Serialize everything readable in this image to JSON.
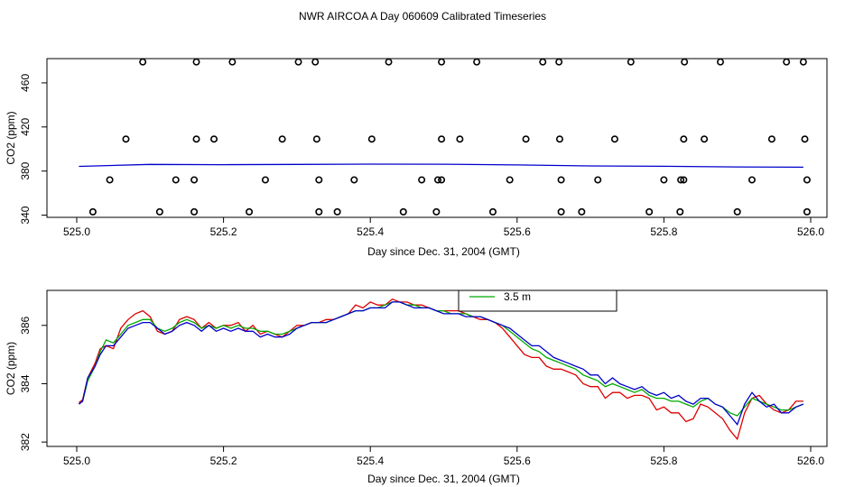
{
  "title": "NWR AIRCOA A  Day 060609  Calibrated Timeseries",
  "chart_data": [
    {
      "type": "scatter",
      "name": "top",
      "xlabel": "Day since Dec. 31, 2004 (GMT)",
      "ylabel": "CO2 (ppm)",
      "xlim": [
        525.0,
        526.0
      ],
      "ylim": [
        338,
        482
      ],
      "xticks": [
        525.0,
        525.2,
        525.4,
        525.6,
        525.8,
        526.0
      ],
      "xtick_labels": [
        "525.0",
        "525.2",
        "525.4",
        "525.6",
        "525.8",
        "526.0"
      ],
      "yticks": [
        340,
        380,
        420,
        460
      ],
      "ytick_labels": [
        "340",
        "380",
        "420",
        "460"
      ],
      "grid": false,
      "points": [
        [
          525.09,
          479
        ],
        [
          525.163,
          479
        ],
        [
          525.212,
          479
        ],
        [
          525.302,
          479
        ],
        [
          525.325,
          479
        ],
        [
          525.425,
          479
        ],
        [
          525.497,
          479
        ],
        [
          525.545,
          479
        ],
        [
          525.635,
          479
        ],
        [
          525.657,
          479
        ],
        [
          525.755,
          479
        ],
        [
          525.828,
          479
        ],
        [
          525.877,
          479
        ],
        [
          525.967,
          479
        ],
        [
          525.99,
          479
        ],
        [
          525.067,
          409
        ],
        [
          525.163,
          409
        ],
        [
          525.187,
          409
        ],
        [
          525.28,
          409
        ],
        [
          525.327,
          409
        ],
        [
          525.402,
          409
        ],
        [
          525.497,
          409
        ],
        [
          525.522,
          409
        ],
        [
          525.612,
          409
        ],
        [
          525.658,
          409
        ],
        [
          525.733,
          409
        ],
        [
          525.827,
          409
        ],
        [
          525.855,
          409
        ],
        [
          525.947,
          409
        ],
        [
          525.992,
          409
        ],
        [
          525.045,
          372
        ],
        [
          525.135,
          372
        ],
        [
          525.16,
          372
        ],
        [
          525.257,
          372
        ],
        [
          525.33,
          372
        ],
        [
          525.378,
          372
        ],
        [
          525.47,
          372
        ],
        [
          525.492,
          372
        ],
        [
          525.497,
          372
        ],
        [
          525.59,
          372
        ],
        [
          525.66,
          372
        ],
        [
          525.71,
          372
        ],
        [
          525.8,
          372
        ],
        [
          525.823,
          372
        ],
        [
          525.827,
          372
        ],
        [
          525.92,
          372
        ],
        [
          525.995,
          372
        ],
        [
          525.022,
          343
        ],
        [
          525.113,
          343
        ],
        [
          525.16,
          343
        ],
        [
          525.235,
          343
        ],
        [
          525.33,
          343
        ],
        [
          525.355,
          343
        ],
        [
          525.445,
          343
        ],
        [
          525.49,
          343
        ],
        [
          525.567,
          343
        ],
        [
          525.66,
          343
        ],
        [
          525.688,
          343
        ],
        [
          525.78,
          343
        ],
        [
          525.822,
          343
        ],
        [
          525.9,
          343
        ],
        [
          525.995,
          343
        ]
      ],
      "series": [
        {
          "name": "blue-flat",
          "color": "#0000cc",
          "x": [
            525.003,
            525.1,
            525.2,
            525.3,
            525.4,
            525.5,
            525.6,
            525.7,
            525.8,
            525.9,
            525.99
          ],
          "y": [
            384.2,
            386,
            385.8,
            386,
            386.3,
            386.2,
            385.5,
            384.6,
            384.3,
            383.7,
            383.5
          ]
        }
      ]
    },
    {
      "type": "line",
      "name": "bottom",
      "xlabel": "Day since Dec. 31, 2004 (GMT)",
      "ylabel": "CO2 (ppm)",
      "xlim": [
        525.0,
        526.0
      ],
      "ylim": [
        381.85,
        387.2
      ],
      "xticks": [
        525.0,
        525.2,
        525.4,
        525.6,
        525.8,
        526.0
      ],
      "xtick_labels": [
        "525.0",
        "525.2",
        "525.4",
        "525.6",
        "525.8",
        "526.0"
      ],
      "yticks": [
        382,
        384,
        386
      ],
      "ytick_labels": [
        "382",
        "384",
        "386"
      ],
      "legend": {
        "placement": "top-center",
        "entries": [
          {
            "label": "3.5 m",
            "color": "#00aa00"
          }
        ]
      },
      "series": [
        {
          "name": "red",
          "color": "#dd0000",
          "x": [
            525.003,
            525.008,
            525.015,
            525.025,
            525.032,
            525.04,
            525.05,
            525.06,
            525.07,
            525.08,
            525.09,
            525.1,
            525.11,
            525.12,
            525.13,
            525.14,
            525.15,
            525.16,
            525.17,
            525.18,
            525.19,
            525.2,
            525.21,
            525.22,
            525.23,
            525.24,
            525.25,
            525.26,
            525.27,
            525.28,
            525.29,
            525.3,
            525.31,
            525.32,
            525.33,
            525.34,
            525.35,
            525.36,
            525.37,
            525.38,
            525.39,
            525.4,
            525.41,
            525.42,
            525.43,
            525.44,
            525.45,
            525.46,
            525.47,
            525.48,
            525.49,
            525.5,
            525.51,
            525.52,
            525.53,
            525.54,
            525.55,
            525.56,
            525.57,
            525.58,
            525.59,
            525.6,
            525.61,
            525.62,
            525.63,
            525.64,
            525.65,
            525.66,
            525.67,
            525.68,
            525.69,
            525.7,
            525.71,
            525.72,
            525.73,
            525.74,
            525.75,
            525.76,
            525.77,
            525.78,
            525.79,
            525.8,
            525.81,
            525.82,
            525.83,
            525.84,
            525.85,
            525.86,
            525.87,
            525.88,
            525.89,
            525.9,
            525.91,
            525.92,
            525.93,
            525.94,
            525.95,
            525.96,
            525.97,
            525.98,
            525.99
          ],
          "y": [
            383.35,
            383.45,
            384.2,
            384.7,
            385.2,
            385.3,
            385.2,
            385.9,
            386.2,
            386.4,
            386.5,
            386.3,
            385.8,
            385.7,
            385.8,
            386.2,
            386.3,
            386.2,
            385.9,
            386.1,
            385.9,
            386.0,
            386.0,
            386.1,
            385.8,
            386.0,
            385.7,
            385.8,
            385.7,
            385.6,
            385.8,
            386.0,
            386.0,
            386.1,
            386.1,
            386.2,
            386.2,
            386.3,
            386.4,
            386.7,
            386.6,
            386.8,
            386.7,
            386.7,
            386.9,
            386.8,
            386.8,
            386.7,
            386.7,
            386.6,
            386.5,
            386.5,
            386.5,
            386.5,
            386.4,
            386.3,
            386.2,
            386.2,
            386.1,
            385.9,
            385.6,
            385.3,
            385.0,
            384.9,
            384.9,
            384.6,
            384.5,
            384.5,
            384.4,
            384.3,
            384.0,
            383.9,
            383.9,
            383.5,
            383.7,
            383.7,
            383.5,
            383.6,
            383.6,
            383.5,
            383.1,
            383.2,
            383.0,
            383.0,
            382.7,
            382.8,
            383.3,
            383.2,
            383.0,
            382.8,
            382.4,
            382.1,
            383.0,
            383.5,
            383.6,
            383.3,
            383.1,
            383.0,
            383.1,
            383.4,
            383.4
          ]
        },
        {
          "name": "green",
          "color": "#00aa00",
          "x": [
            525.003,
            525.008,
            525.015,
            525.025,
            525.032,
            525.04,
            525.05,
            525.06,
            525.07,
            525.08,
            525.09,
            525.1,
            525.11,
            525.12,
            525.13,
            525.14,
            525.15,
            525.16,
            525.17,
            525.18,
            525.19,
            525.2,
            525.21,
            525.22,
            525.23,
            525.24,
            525.25,
            525.26,
            525.27,
            525.28,
            525.29,
            525.3,
            525.31,
            525.32,
            525.33,
            525.34,
            525.35,
            525.36,
            525.37,
            525.38,
            525.39,
            525.4,
            525.41,
            525.42,
            525.43,
            525.44,
            525.45,
            525.46,
            525.47,
            525.48,
            525.49,
            525.5,
            525.51,
            525.52,
            525.53,
            525.54,
            525.55,
            525.56,
            525.57,
            525.58,
            525.59,
            525.6,
            525.61,
            525.62,
            525.63,
            525.64,
            525.65,
            525.66,
            525.67,
            525.68,
            525.69,
            525.7,
            525.71,
            525.72,
            525.73,
            525.74,
            525.75,
            525.76,
            525.77,
            525.78,
            525.79,
            525.8,
            525.81,
            525.82,
            525.83,
            525.84,
            525.85,
            525.86,
            525.87,
            525.88,
            525.89,
            525.9,
            525.91,
            525.92,
            525.93,
            525.94,
            525.95,
            525.96,
            525.97,
            525.98,
            525.99
          ],
          "y": [
            383.3,
            383.4,
            384.1,
            384.6,
            385.1,
            385.5,
            385.4,
            385.7,
            386.0,
            386.1,
            386.2,
            386.2,
            385.9,
            385.8,
            385.9,
            386.1,
            386.2,
            386.1,
            385.9,
            386.0,
            385.9,
            386.0,
            385.9,
            386.0,
            385.9,
            385.9,
            385.8,
            385.8,
            385.7,
            385.7,
            385.8,
            385.9,
            386.0,
            386.1,
            386.1,
            386.1,
            386.2,
            386.3,
            386.4,
            386.5,
            386.5,
            386.6,
            386.6,
            386.7,
            386.8,
            386.8,
            386.7,
            386.7,
            386.6,
            386.6,
            386.5,
            386.5,
            386.4,
            386.4,
            386.4,
            386.3,
            386.3,
            386.2,
            386.1,
            386.0,
            385.8,
            385.6,
            385.4,
            385.2,
            385.1,
            384.9,
            384.8,
            384.7,
            384.6,
            384.5,
            384.3,
            384.2,
            384.1,
            383.9,
            384.0,
            383.9,
            383.8,
            383.7,
            383.8,
            383.6,
            383.5,
            383.5,
            383.4,
            383.4,
            383.3,
            383.2,
            383.4,
            383.5,
            383.3,
            383.2,
            383.0,
            382.9,
            383.2,
            383.5,
            383.4,
            383.3,
            383.2,
            383.1,
            383.1,
            383.2,
            383.3
          ]
        },
        {
          "name": "blue",
          "color": "#0000cc",
          "x": [
            525.003,
            525.008,
            525.015,
            525.025,
            525.032,
            525.04,
            525.05,
            525.06,
            525.07,
            525.08,
            525.09,
            525.1,
            525.11,
            525.12,
            525.13,
            525.14,
            525.15,
            525.16,
            525.17,
            525.18,
            525.19,
            525.2,
            525.21,
            525.22,
            525.23,
            525.24,
            525.25,
            525.26,
            525.27,
            525.28,
            525.29,
            525.3,
            525.31,
            525.32,
            525.33,
            525.34,
            525.35,
            525.36,
            525.37,
            525.38,
            525.39,
            525.4,
            525.41,
            525.42,
            525.43,
            525.44,
            525.45,
            525.46,
            525.47,
            525.48,
            525.49,
            525.5,
            525.51,
            525.52,
            525.53,
            525.54,
            525.55,
            525.56,
            525.57,
            525.58,
            525.59,
            525.6,
            525.61,
            525.62,
            525.63,
            525.64,
            525.65,
            525.66,
            525.67,
            525.68,
            525.69,
            525.7,
            525.71,
            525.72,
            525.73,
            525.74,
            525.75,
            525.76,
            525.77,
            525.78,
            525.79,
            525.8,
            525.81,
            525.82,
            525.83,
            525.84,
            525.85,
            525.86,
            525.87,
            525.88,
            525.89,
            525.9,
            525.91,
            525.92,
            525.93,
            525.94,
            525.95,
            525.96,
            525.97,
            525.98,
            525.99
          ],
          "y": [
            383.3,
            383.4,
            384.2,
            384.6,
            385.0,
            385.3,
            385.3,
            385.6,
            385.9,
            386.0,
            386.1,
            386.1,
            385.9,
            385.7,
            385.8,
            386.0,
            386.1,
            386.0,
            385.8,
            386.0,
            385.8,
            385.9,
            385.8,
            385.9,
            385.8,
            385.8,
            385.6,
            385.7,
            385.6,
            385.6,
            385.7,
            385.9,
            386.0,
            386.1,
            386.1,
            386.1,
            386.2,
            386.3,
            386.4,
            386.5,
            386.5,
            386.6,
            386.6,
            386.6,
            386.8,
            386.8,
            386.7,
            386.6,
            386.6,
            386.6,
            386.5,
            386.4,
            386.4,
            386.4,
            386.3,
            386.3,
            386.3,
            386.2,
            386.1,
            386.0,
            385.9,
            385.7,
            385.5,
            385.3,
            385.3,
            385.1,
            384.9,
            384.8,
            384.7,
            384.6,
            384.5,
            384.3,
            384.3,
            384.0,
            384.2,
            384.0,
            383.9,
            383.8,
            383.9,
            383.7,
            383.6,
            383.7,
            383.5,
            383.6,
            383.4,
            383.3,
            383.5,
            383.5,
            383.3,
            383.2,
            382.9,
            382.6,
            383.3,
            383.7,
            383.4,
            383.2,
            383.3,
            383.0,
            383.0,
            383.2,
            383.3
          ]
        }
      ]
    }
  ]
}
